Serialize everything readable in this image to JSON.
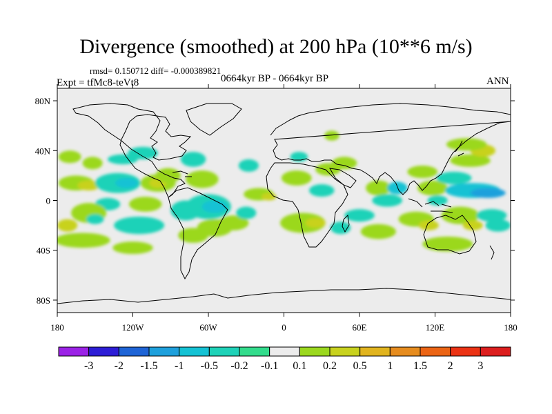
{
  "header": {
    "title": "Divergence (smoothed) at 200 hPa (10**6 m/s)",
    "stats": "rmsd= 0.150712 diff= -0.000389821",
    "experiment": "Expt = tfMc8-teVt8",
    "period": "0664kyr BP - 0664kyr BP",
    "season": "ANN"
  },
  "chart_data": {
    "type": "heatmap",
    "title": "Divergence (smoothed) at 200 hPa (10**6 m/s)",
    "xlabel": "",
    "ylabel": "",
    "xlim": [
      -180,
      180
    ],
    "ylim": [
      -90,
      90
    ],
    "x_ticks": [
      {
        "value": -180,
        "label": "180"
      },
      {
        "value": -120,
        "label": "120W"
      },
      {
        "value": -60,
        "label": "60W"
      },
      {
        "value": 0,
        "label": "0"
      },
      {
        "value": 60,
        "label": "60E"
      },
      {
        "value": 120,
        "label": "120E"
      },
      {
        "value": 180,
        "label": "180"
      }
    ],
    "y_ticks": [
      {
        "value": 80,
        "label": "80N"
      },
      {
        "value": 40,
        "label": "40N"
      },
      {
        "value": 0,
        "label": "0"
      },
      {
        "value": -40,
        "label": "40S"
      },
      {
        "value": -80,
        "label": "80S"
      }
    ],
    "background_color": "#ececec",
    "colorbar": {
      "labels": [
        "-3",
        "-2",
        "-1.5",
        "-1",
        "-0.5",
        "-0.2",
        "-0.1",
        "0.1",
        "0.2",
        "0.5",
        "1",
        "1.5",
        "2",
        "3"
      ],
      "colors": [
        "#9b22e6",
        "#2d1dd6",
        "#1e64d6",
        "#1ea0dc",
        "#14c2d4",
        "#1ed2b8",
        "#32dc8c",
        "#ececec",
        "#9bd81e",
        "#c8d21e",
        "#e1b41e",
        "#e68c1e",
        "#eb6414",
        "#eb3214",
        "#dc1e1e"
      ]
    },
    "features": [
      {
        "lon": -170,
        "lat": 35,
        "rx": 9,
        "ry": 5,
        "value": 0.2
      },
      {
        "lon": -152,
        "lat": 30,
        "rx": 8,
        "ry": 5,
        "value": 0.2
      },
      {
        "lon": -128,
        "lat": 33,
        "rx": 12,
        "ry": 4,
        "value": -0.2
      },
      {
        "lon": -112,
        "lat": 38,
        "rx": 12,
        "ry": 5,
        "value": -0.2
      },
      {
        "lon": -165,
        "lat": 14,
        "rx": 14,
        "ry": 6,
        "value": 0.2
      },
      {
        "lon": -155,
        "lat": 12,
        "rx": 9,
        "ry": 4,
        "value": 0.5
      },
      {
        "lon": -132,
        "lat": 14,
        "rx": 18,
        "ry": 8,
        "value": -0.2
      },
      {
        "lon": -125,
        "lat": 14,
        "rx": 9,
        "ry": 4,
        "value": -0.5
      },
      {
        "lon": -100,
        "lat": 14,
        "rx": 14,
        "ry": 7,
        "value": 0.2
      },
      {
        "lon": -100,
        "lat": 14,
        "rx": 7,
        "ry": 4,
        "value": 0.5
      },
      {
        "lon": -92,
        "lat": 20,
        "rx": 10,
        "ry": 6,
        "value": 0.2
      },
      {
        "lon": -72,
        "lat": 33,
        "rx": 10,
        "ry": 6,
        "value": -0.2
      },
      {
        "lon": -65,
        "lat": 17,
        "rx": 13,
        "ry": 7,
        "value": 0.2
      },
      {
        "lon": -110,
        "lat": -3,
        "rx": 13,
        "ry": 6,
        "value": 0.2
      },
      {
        "lon": -140,
        "lat": -3,
        "rx": 10,
        "ry": 5,
        "value": -0.2
      },
      {
        "lon": -155,
        "lat": -10,
        "rx": 14,
        "ry": 8,
        "value": 0.2
      },
      {
        "lon": -150,
        "lat": -15,
        "rx": 7,
        "ry": 4,
        "value": -0.2
      },
      {
        "lon": -115,
        "lat": -20,
        "rx": 20,
        "ry": 7,
        "value": -0.2
      },
      {
        "lon": -172,
        "lat": -20,
        "rx": 8,
        "ry": 5,
        "value": 0.5
      },
      {
        "lon": -160,
        "lat": -32,
        "rx": 22,
        "ry": 6,
        "value": 0.2
      },
      {
        "lon": -120,
        "lat": -38,
        "rx": 16,
        "ry": 5,
        "value": 0.2
      },
      {
        "lon": -78,
        "lat": -8,
        "rx": 12,
        "ry": 8,
        "value": -0.2
      },
      {
        "lon": -60,
        "lat": -5,
        "rx": 18,
        "ry": 10,
        "value": -0.2
      },
      {
        "lon": -55,
        "lat": -5,
        "rx": 10,
        "ry": 5,
        "value": -0.5
      },
      {
        "lon": -55,
        "lat": -22,
        "rx": 14,
        "ry": 7,
        "value": 0.2
      },
      {
        "lon": -72,
        "lat": -28,
        "rx": 12,
        "ry": 6,
        "value": 0.2
      },
      {
        "lon": -40,
        "lat": -18,
        "rx": 12,
        "ry": 6,
        "value": 0.2
      },
      {
        "lon": -20,
        "lat": 5,
        "rx": 12,
        "ry": 5,
        "value": 0.2
      },
      {
        "lon": -12,
        "lat": 3,
        "rx": 6,
        "ry": 3,
        "value": 0.5
      },
      {
        "lon": -28,
        "lat": 28,
        "rx": 8,
        "ry": 5,
        "value": -0.2
      },
      {
        "lon": -30,
        "lat": -10,
        "rx": 8,
        "ry": 5,
        "value": -0.2
      },
      {
        "lon": 15,
        "lat": -18,
        "rx": 18,
        "ry": 8,
        "value": 0.2
      },
      {
        "lon": 25,
        "lat": -18,
        "rx": 8,
        "ry": 4,
        "value": 0.5
      },
      {
        "lon": 10,
        "lat": 18,
        "rx": 12,
        "ry": 6,
        "value": 0.2
      },
      {
        "lon": 12,
        "lat": 35,
        "rx": 7,
        "ry": 4,
        "value": -0.2
      },
      {
        "lon": 30,
        "lat": 8,
        "rx": 10,
        "ry": 5,
        "value": -0.2
      },
      {
        "lon": 35,
        "lat": 25,
        "rx": 10,
        "ry": 5,
        "value": 0.2
      },
      {
        "lon": 48,
        "lat": 30,
        "rx": 10,
        "ry": 5,
        "value": 0.2
      },
      {
        "lon": 38,
        "lat": 52,
        "rx": 6,
        "ry": 4,
        "value": 0.2
      },
      {
        "lon": 75,
        "lat": 10,
        "rx": 10,
        "ry": 6,
        "value": 0.2
      },
      {
        "lon": 82,
        "lat": 0,
        "rx": 12,
        "ry": 5,
        "value": -0.2
      },
      {
        "lon": 90,
        "lat": 10,
        "rx": 8,
        "ry": 5,
        "value": -0.5
      },
      {
        "lon": 110,
        "lat": 23,
        "rx": 12,
        "ry": 5,
        "value": 0.2
      },
      {
        "lon": 118,
        "lat": 10,
        "rx": 12,
        "ry": 6,
        "value": 0.2
      },
      {
        "lon": 135,
        "lat": 18,
        "rx": 14,
        "ry": 5,
        "value": -0.2
      },
      {
        "lon": 150,
        "lat": 8,
        "rx": 22,
        "ry": 6,
        "value": -0.5
      },
      {
        "lon": 162,
        "lat": 6,
        "rx": 14,
        "ry": 4,
        "value": -1
      },
      {
        "lon": 122,
        "lat": 0,
        "rx": 8,
        "ry": 4,
        "value": -0.2
      },
      {
        "lon": 148,
        "lat": 32,
        "rx": 16,
        "ry": 5,
        "value": 0.2
      },
      {
        "lon": 158,
        "lat": 40,
        "rx": 10,
        "ry": 5,
        "value": 0.5
      },
      {
        "lon": 145,
        "lat": 45,
        "rx": 16,
        "ry": 5,
        "value": 0.2
      },
      {
        "lon": 105,
        "lat": -15,
        "rx": 14,
        "ry": 6,
        "value": 0.2
      },
      {
        "lon": 115,
        "lat": -20,
        "rx": 8,
        "ry": 4,
        "value": 0.5
      },
      {
        "lon": 140,
        "lat": -12,
        "rx": 15,
        "ry": 7,
        "value": 0.2
      },
      {
        "lon": 150,
        "lat": -20,
        "rx": 8,
        "ry": 4,
        "value": 0.5
      },
      {
        "lon": 165,
        "lat": -12,
        "rx": 12,
        "ry": 5,
        "value": -0.2
      },
      {
        "lon": 170,
        "lat": -20,
        "rx": 10,
        "ry": 5,
        "value": -0.2
      },
      {
        "lon": 75,
        "lat": -25,
        "rx": 14,
        "ry": 6,
        "value": 0.2
      },
      {
        "lon": 130,
        "lat": -35,
        "rx": 20,
        "ry": 6,
        "value": 0.2
      },
      {
        "lon": 45,
        "lat": -22,
        "rx": 8,
        "ry": 5,
        "value": -0.2
      },
      {
        "lon": 60,
        "lat": -12,
        "rx": 12,
        "ry": 5,
        "value": -0.2
      }
    ]
  }
}
